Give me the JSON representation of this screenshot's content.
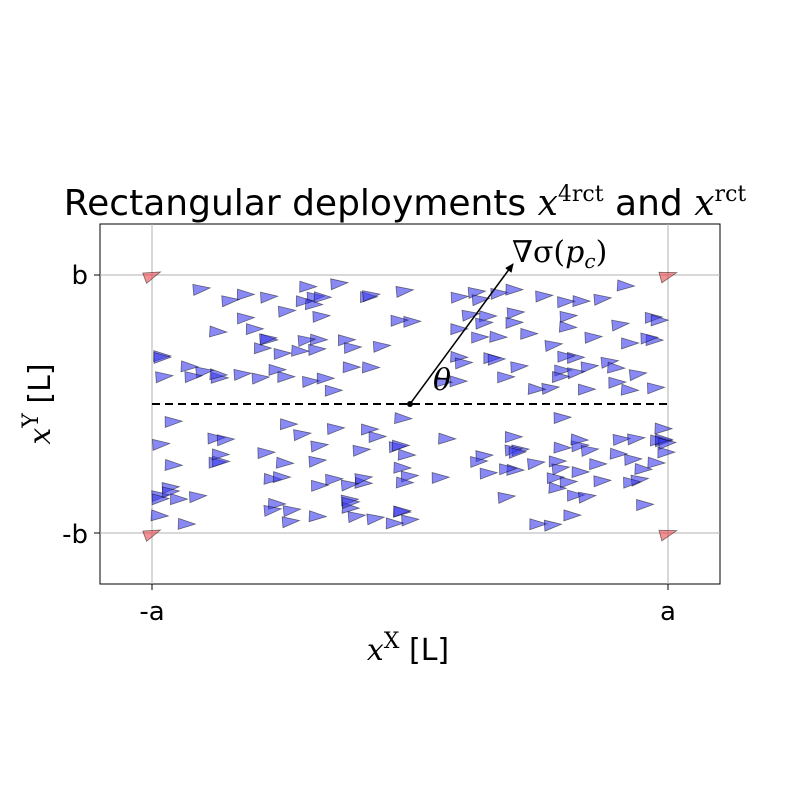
{
  "chart_data": {
    "type": "scatter",
    "title": {
      "prefix": "Rectangular deployments ",
      "math1_base": "x",
      "math1_sup": "4rct",
      "middle": " and ",
      "math2_base": "x",
      "math2_sup": "rct"
    },
    "xlabel": {
      "math_base": "x",
      "math_sup": "X",
      "unit": " [L]"
    },
    "ylabel": {
      "math_base": "x",
      "math_sup": "Y",
      "unit": " [L]"
    },
    "xticks": [
      "-a",
      "a"
    ],
    "yticks": [
      "-b",
      "b"
    ],
    "xlim": [
      -1.2,
      1.2
    ],
    "ylim": [
      -1.2,
      1.2
    ],
    "grid": true,
    "gradient_label": "∇σ(p_c)",
    "gradient_label_parts": {
      "nabla": "∇σ(",
      "sub_base": "p",
      "sub": "c",
      "close": ")"
    },
    "angle_label": "θ",
    "center": [
      0,
      0
    ],
    "gradient_tip": [
      0.4,
      1.08
    ],
    "corner_agents": [
      [
        -1,
        1
      ],
      [
        1,
        1
      ],
      [
        -1,
        -1
      ],
      [
        1,
        -1
      ]
    ],
    "corner_color": "#e8474b",
    "agent_color": "#3a3aef",
    "agent_count": 200
  }
}
